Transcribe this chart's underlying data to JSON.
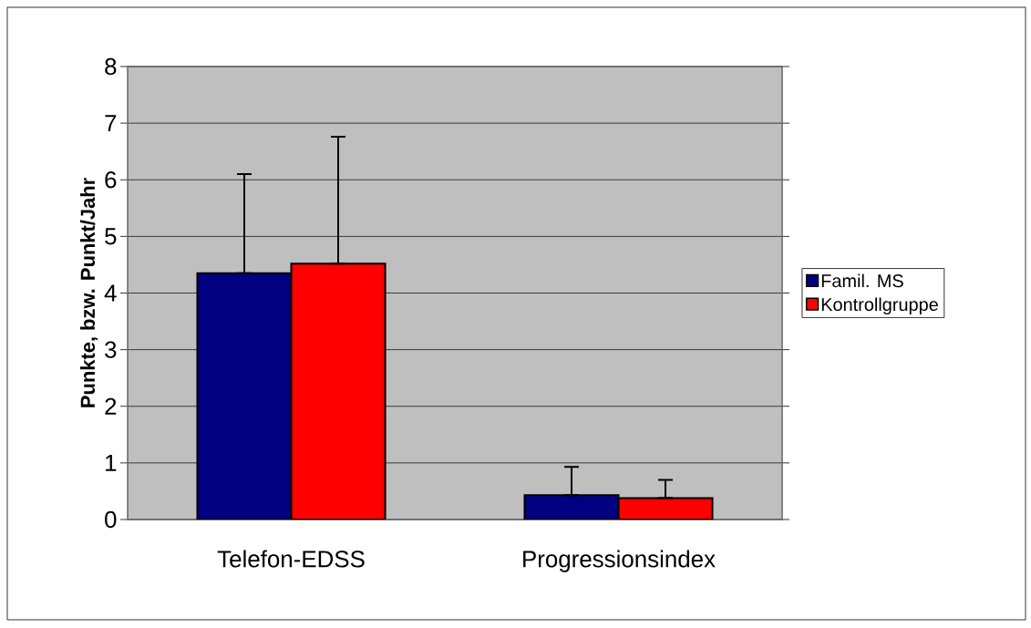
{
  "chart_data": {
    "type": "bar",
    "ylabel": "Punkte, bzw. Punkt/Jahr",
    "categories": [
      "Telefon-EDSS",
      "Progressionsindex"
    ],
    "series": [
      {
        "name": "Famil. MS",
        "color": "#000080",
        "values": [
          4.35,
          0.43
        ],
        "errors": [
          [
            4.35,
            6.1
          ],
          [
            0.43,
            0.93
          ]
        ]
      },
      {
        "name": "Kontrollgruppe",
        "color": "#ff0000",
        "values": [
          4.52,
          0.38
        ],
        "errors": [
          [
            4.52,
            6.76
          ],
          [
            0.38,
            0.7
          ]
        ]
      }
    ],
    "ylim": [
      0,
      8
    ],
    "yticks": [
      0,
      1,
      2,
      3,
      4,
      5,
      6,
      7,
      8
    ],
    "grid": "y",
    "legend": "right"
  }
}
